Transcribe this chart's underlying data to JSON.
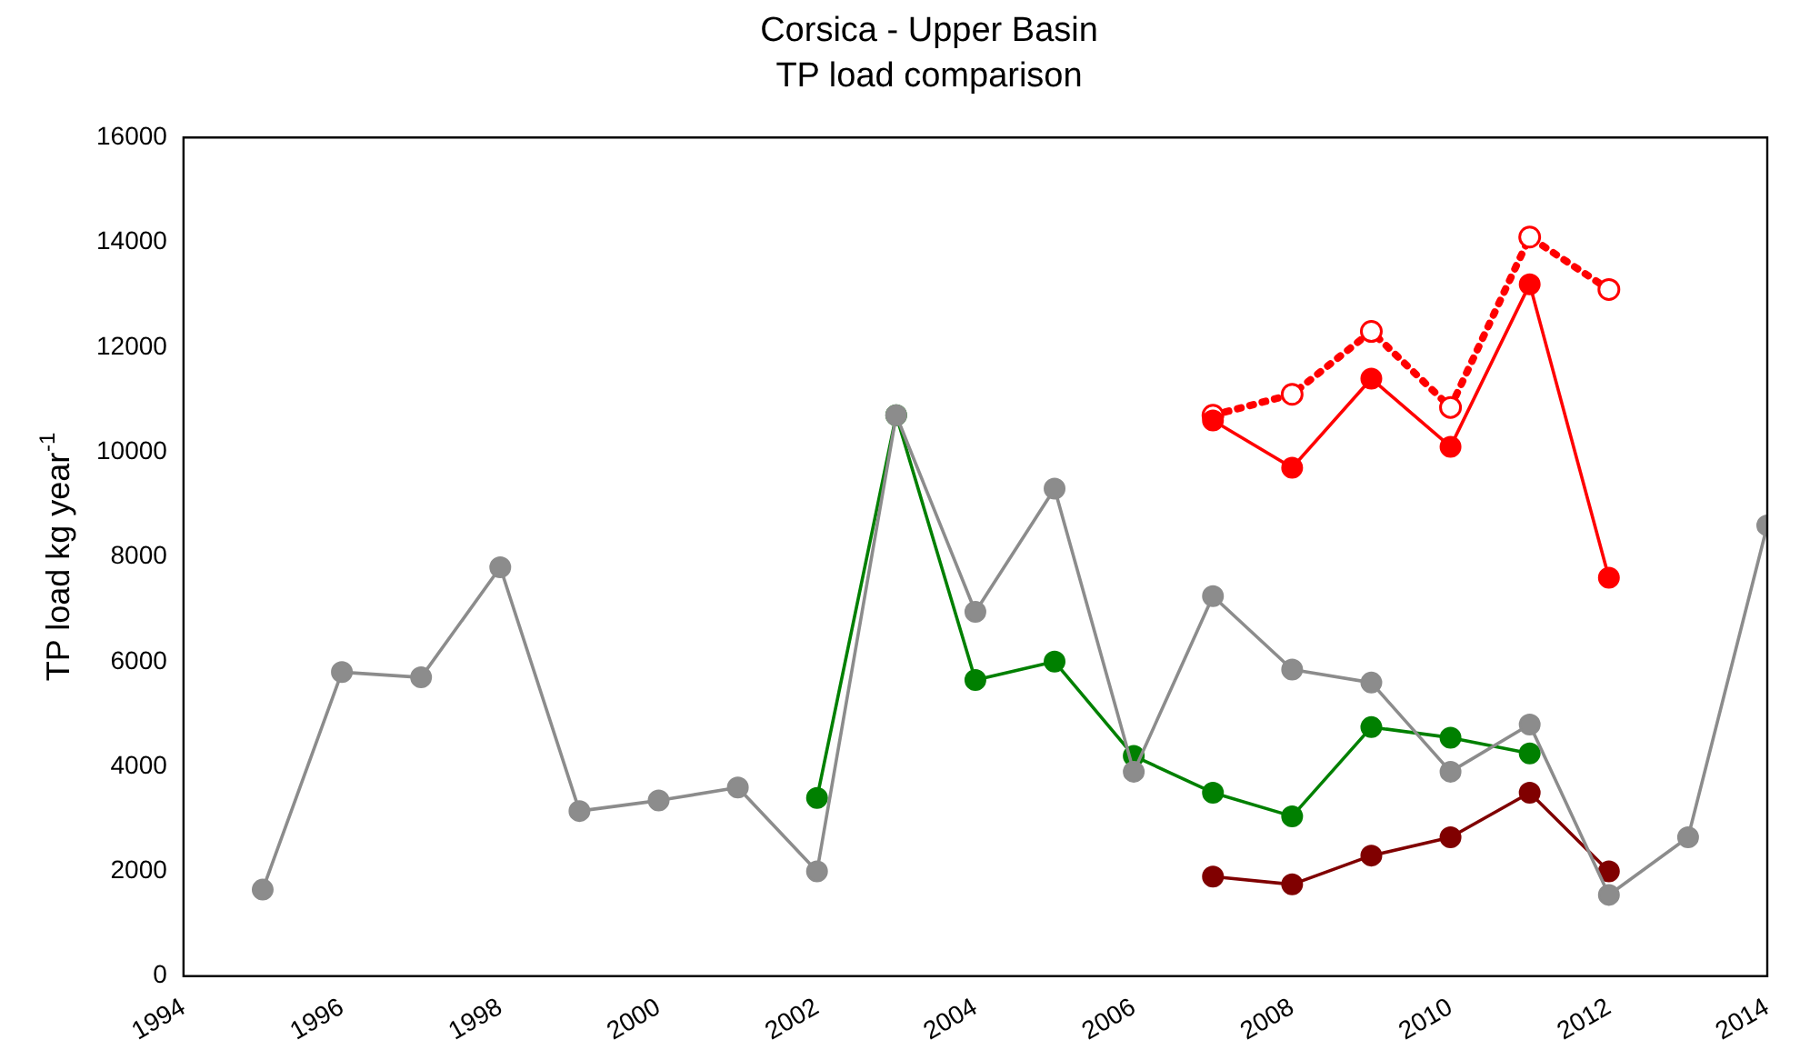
{
  "chart_data": {
    "type": "line",
    "title": "Corsica - Upper Basin",
    "subtitle": "TP load comparison",
    "ylabel": "TP load kg year$^{-1}$",
    "xlim": [
      1994,
      2014
    ],
    "xticks": [
      1994,
      1996,
      1998,
      2000,
      2002,
      2004,
      2006,
      2008,
      2010,
      2012,
      2014
    ],
    "ylim": [
      0,
      16000
    ],
    "yticks": [
      0,
      2000,
      4000,
      6000,
      8000,
      10000,
      12000,
      14000,
      16000
    ],
    "grid": false,
    "legend": false,
    "marker": "circle",
    "line_style": "solid",
    "series": [
      {
        "color": "#8c8c8c",
        "x": [
          1995,
          1996,
          1997,
          1998,
          1999,
          2000,
          2001,
          2002,
          2003,
          2004,
          2005,
          2006,
          2007,
          2008,
          2009,
          2010,
          2011,
          2012,
          2013,
          2014
        ],
        "values": [
          1650,
          5800,
          5700,
          7800,
          3150,
          3350,
          3600,
          2000,
          10700,
          6950,
          9300,
          3900,
          7250,
          5850,
          5600,
          3900,
          4800,
          1550,
          2650,
          8600
        ]
      },
      {
        "color": "#008000",
        "x": [
          2002,
          2003,
          2004,
          2005,
          2006,
          2007,
          2008,
          2009,
          2010,
          2011
        ],
        "values": [
          3400,
          10700,
          5650,
          6000,
          4200,
          3500,
          3050,
          4750,
          4550,
          4250
        ]
      },
      {
        "color": "#800000",
        "x": [
          2007,
          2008,
          2009,
          2010,
          2011,
          2012
        ],
        "values": [
          1900,
          1750,
          2300,
          2650,
          3500,
          2000
        ]
      },
      {
        "color": "#ff0000",
        "x": [
          2007,
          2008,
          2009,
          2010,
          2011,
          2012
        ],
        "values": [
          10600,
          9700,
          11400,
          10100,
          13200,
          7600
        ]
      },
      {
        "color": "#ff0000",
        "x": [
          2007,
          2008,
          2009,
          2010,
          2011,
          2012
        ],
        "values": [
          10700,
          11100,
          12300,
          10850,
          14100,
          13100
        ],
        "line_style": "dotted"
      }
    ]
  }
}
